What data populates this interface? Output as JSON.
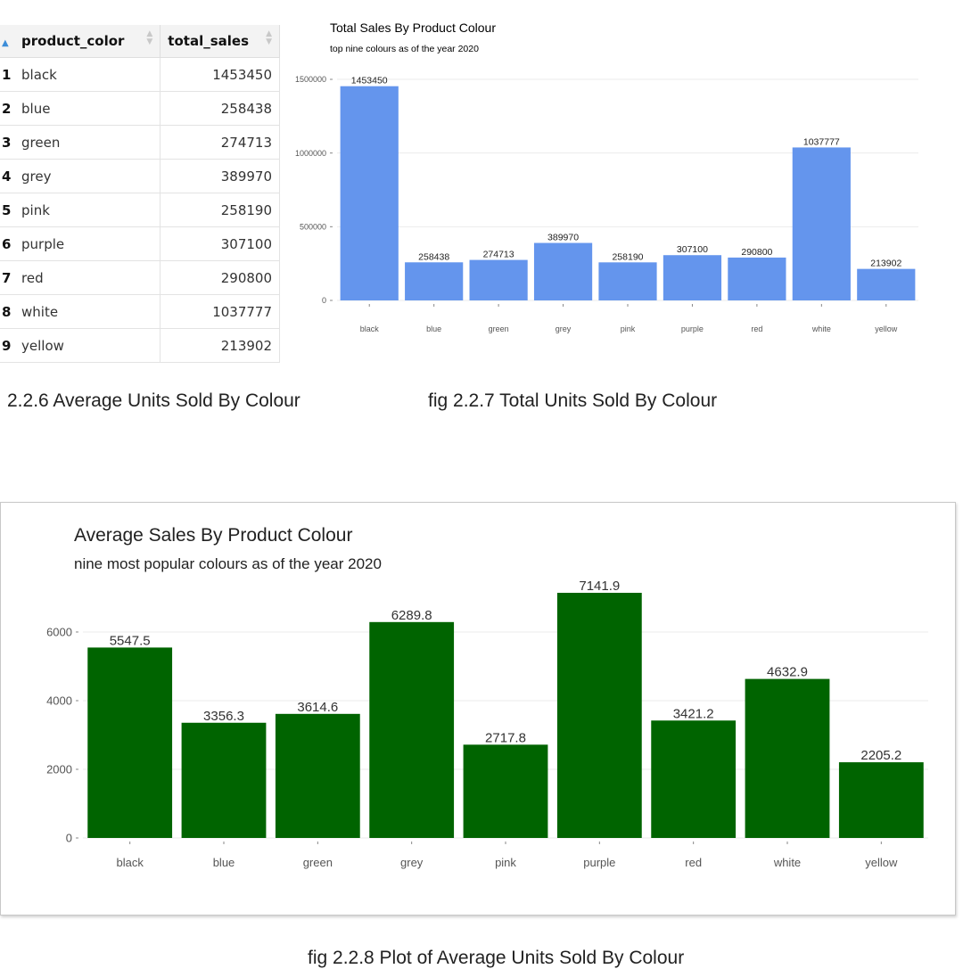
{
  "table": {
    "headers": [
      "product_color",
      "total_sales"
    ],
    "rows": [
      {
        "index": "1",
        "product_color": "black",
        "total_sales": "1453450"
      },
      {
        "index": "2",
        "product_color": "blue",
        "total_sales": "258438"
      },
      {
        "index": "3",
        "product_color": "green",
        "total_sales": "274713"
      },
      {
        "index": "4",
        "product_color": "grey",
        "total_sales": "389970"
      },
      {
        "index": "5",
        "product_color": "pink",
        "total_sales": "258190"
      },
      {
        "index": "6",
        "product_color": "purple",
        "total_sales": "307100"
      },
      {
        "index": "7",
        "product_color": "red",
        "total_sales": "290800"
      },
      {
        "index": "8",
        "product_color": "white",
        "total_sales": "1037777"
      },
      {
        "index": "9",
        "product_color": "yellow",
        "total_sales": "213902"
      }
    ]
  },
  "captions": {
    "table_caption": "2.2.6 Average Units Sold By Colour",
    "chart1_caption": "fig 2.2.7 Total Units Sold By Colour",
    "chart2_caption": "fig 2.2.8 Plot of Average Units Sold By Colour"
  },
  "chart_data": [
    {
      "type": "bar",
      "title": "Total Sales By Product Colour",
      "subtitle": "top nine colours as of the year 2020",
      "xlabel": "",
      "ylabel": "",
      "categories": [
        "black",
        "blue",
        "green",
        "grey",
        "pink",
        "purple",
        "red",
        "white",
        "yellow"
      ],
      "values": [
        1453450,
        258438,
        274713,
        389970,
        258190,
        307100,
        290800,
        1037777,
        213902
      ],
      "data_labels": [
        "1453450",
        "258438",
        "274713",
        "389970",
        "258190",
        "307100",
        "290800",
        "1037777",
        "213902"
      ],
      "y_ticks": [
        0,
        500000,
        1000000,
        1500000
      ],
      "y_tick_labels": [
        "0",
        "500000",
        "1000000",
        "1500000"
      ],
      "ylim": [
        0,
        1500000
      ],
      "bar_color": "#6495ed",
      "grid": true
    },
    {
      "type": "bar",
      "title": "Average Sales By Product Colour",
      "subtitle": "nine most popular colours as of the year 2020",
      "xlabel": "",
      "ylabel": "",
      "categories": [
        "black",
        "blue",
        "green",
        "grey",
        "pink",
        "purple",
        "red",
        "white",
        "yellow"
      ],
      "values": [
        5547.5,
        3356.3,
        3614.6,
        6289.8,
        2717.8,
        7141.9,
        3421.2,
        4632.9,
        2205.2
      ],
      "data_labels": [
        "5547.5",
        "3356.3",
        "3614.6",
        "6289.8",
        "2717.8",
        "7141.9",
        "3421.2",
        "4632.9",
        "2205.2"
      ],
      "y_ticks": [
        0,
        2000,
        4000,
        6000
      ],
      "y_tick_labels": [
        "0",
        "2000",
        "4000",
        "6000"
      ],
      "ylim": [
        0,
        7141.9
      ],
      "bar_color": "#006400",
      "grid": true
    }
  ]
}
